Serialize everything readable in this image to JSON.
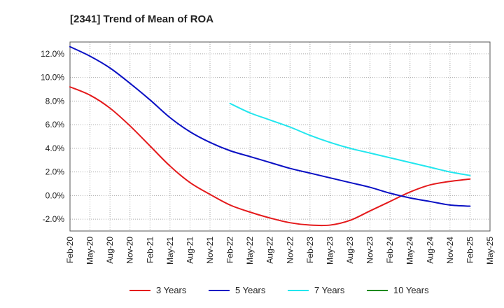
{
  "chart_data": {
    "type": "line",
    "title": "[2341]  Trend of Mean of ROA",
    "xlabel": "",
    "ylabel": "",
    "ylim": [
      -3.0,
      13.0
    ],
    "y_ticks": [
      -2.0,
      0.0,
      2.0,
      4.0,
      6.0,
      8.0,
      10.0,
      12.0
    ],
    "y_tick_labels": [
      "-2.0%",
      "0.0%",
      "2.0%",
      "4.0%",
      "6.0%",
      "8.0%",
      "10.0%",
      "12.0%"
    ],
    "categories": [
      "Feb-20",
      "May-20",
      "Aug-20",
      "Nov-20",
      "Feb-21",
      "May-21",
      "Aug-21",
      "Nov-21",
      "Feb-22",
      "May-22",
      "Aug-22",
      "Nov-22",
      "Feb-23",
      "May-23",
      "Aug-23",
      "Nov-23",
      "Feb-24",
      "May-24",
      "Aug-24",
      "Nov-24",
      "Feb-25",
      "May-25"
    ],
    "grid": true,
    "legend_position": "bottom",
    "series": [
      {
        "name": "3 Years",
        "color": "#e41a1c",
        "values": [
          9.2,
          8.5,
          7.4,
          5.9,
          4.2,
          2.5,
          1.1,
          0.1,
          -0.8,
          -1.4,
          -1.9,
          -2.3,
          -2.5,
          -2.5,
          -2.1,
          -1.3,
          -0.5,
          0.3,
          0.9,
          1.2,
          1.4,
          null
        ]
      },
      {
        "name": "5 Years",
        "color": "#0a10c4",
        "values": [
          12.6,
          11.8,
          10.8,
          9.5,
          8.1,
          6.6,
          5.4,
          4.5,
          3.8,
          3.3,
          2.8,
          2.3,
          1.9,
          1.5,
          1.1,
          0.7,
          0.2,
          -0.2,
          -0.5,
          -0.8,
          -0.9,
          null
        ]
      },
      {
        "name": "7 Years",
        "color": "#22e6ee",
        "values": [
          null,
          null,
          null,
          null,
          null,
          null,
          null,
          null,
          7.8,
          7.0,
          6.4,
          5.8,
          5.1,
          4.5,
          4.0,
          3.6,
          3.2,
          2.8,
          2.4,
          2.0,
          1.7,
          null
        ]
      },
      {
        "name": "10 Years",
        "color": "#1e8a1e",
        "values": [
          null,
          null,
          null,
          null,
          null,
          null,
          null,
          null,
          null,
          null,
          null,
          null,
          null,
          null,
          null,
          null,
          null,
          null,
          null,
          null,
          null,
          null
        ]
      }
    ]
  }
}
